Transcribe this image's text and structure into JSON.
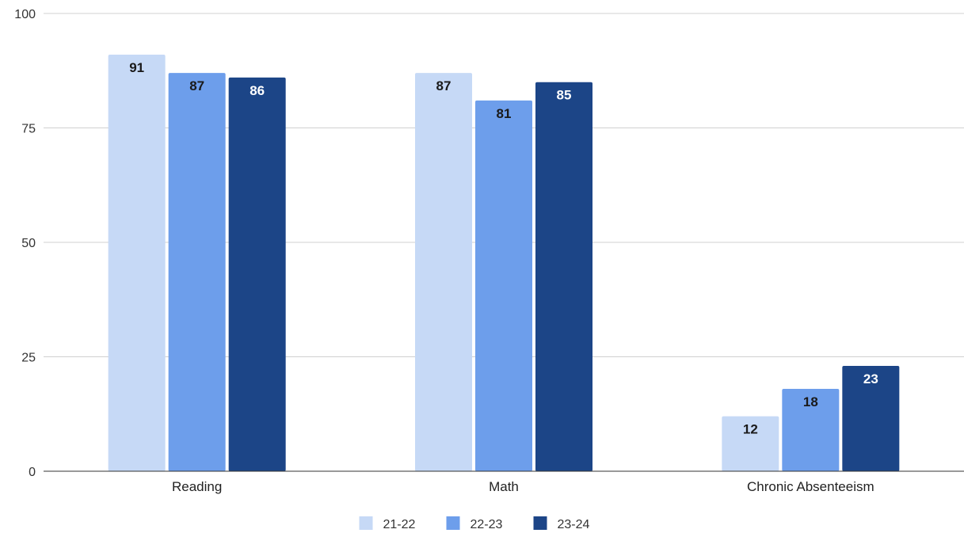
{
  "chart_data": {
    "type": "bar",
    "title": "",
    "xlabel": "",
    "ylabel": "",
    "categories": [
      "Reading",
      "Math",
      "Chronic Absenteeism"
    ],
    "series": [
      {
        "name": "21-22",
        "color": "#c6d9f6",
        "label_color": "#1a1a1a",
        "values": [
          91,
          87,
          12
        ]
      },
      {
        "name": "22-23",
        "color": "#6d9eeb",
        "label_color": "#1a1a1a",
        "values": [
          87,
          81,
          18
        ]
      },
      {
        "name": "23-24",
        "color": "#1c4587",
        "label_color": "#ffffff",
        "values": [
          86,
          85,
          23
        ]
      }
    ],
    "ylim": [
      0,
      100
    ],
    "yticks": [
      0,
      25,
      50,
      75,
      100
    ],
    "grid": true,
    "legend_position": "bottom"
  }
}
